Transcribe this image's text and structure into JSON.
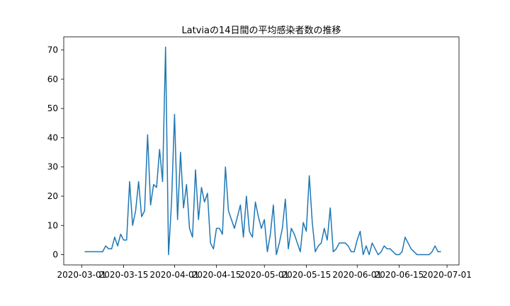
{
  "chart_data": {
    "type": "line",
    "title": "Latviaの14日間の平均感染者数の推移",
    "xlabel": "",
    "ylabel": "",
    "x_ticks": [
      "2020-03-01",
      "2020-03-15",
      "2020-04-01",
      "2020-04-15",
      "2020-05-01",
      "2020-05-15",
      "2020-06-01",
      "2020-06-15",
      "2020-07-01"
    ],
    "y_ticks": [
      0,
      10,
      20,
      30,
      40,
      50,
      60,
      70
    ],
    "xlim": [
      "2020-02-24",
      "2020-07-05"
    ],
    "ylim": [
      -3.5,
      74.5
    ],
    "grid": false,
    "line_color": "#1f77b4",
    "series": [
      {
        "start_date": "2020-03-02",
        "values": [
          1,
          1,
          1,
          1,
          1,
          1,
          1,
          3,
          2,
          2,
          6,
          3,
          7,
          5,
          5,
          25,
          10,
          15,
          25,
          13,
          15,
          41,
          17,
          24,
          23,
          36,
          25,
          71,
          0,
          18,
          48,
          12,
          35,
          16,
          24,
          9,
          6,
          29,
          12,
          23,
          18,
          21,
          4,
          2,
          9,
          9,
          7,
          30,
          15,
          12,
          9,
          13,
          17,
          6,
          20,
          8,
          6,
          18,
          13,
          9,
          12,
          1,
          7,
          17,
          0,
          4,
          9,
          19,
          2,
          9,
          7,
          4,
          1,
          11,
          8,
          27,
          11,
          1,
          3,
          4,
          9,
          5,
          16,
          1,
          2,
          4,
          4,
          4,
          3,
          1,
          1,
          5,
          8,
          0,
          3,
          0,
          4,
          2,
          0,
          1,
          3,
          2,
          2,
          1,
          0,
          0,
          1,
          6,
          4,
          2,
          1,
          0,
          0,
          0,
          0,
          0,
          1,
          3,
          1,
          1
        ]
      }
    ]
  }
}
